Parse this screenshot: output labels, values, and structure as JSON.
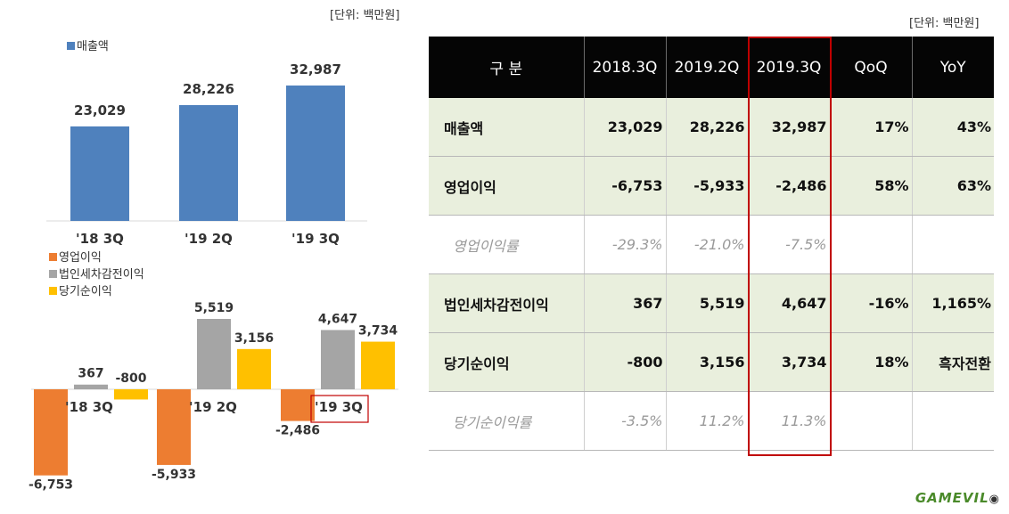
{
  "units": {
    "left": "[단위: 백만원]",
    "right": "[단위: 백만원]"
  },
  "colors": {
    "revenue": "#4f81bd",
    "operating": "#ed7d31",
    "pretax": "#a5a5a5",
    "net": "#ffc000",
    "highlight": "#c00000",
    "header_bg": "#050505",
    "row_shade": "#e9efdd"
  },
  "chart_data": [
    {
      "type": "bar",
      "legend": [
        "매출액"
      ],
      "categories": [
        "'18 3Q",
        "'19 2Q",
        "'19 3Q"
      ],
      "series": [
        {
          "name": "매출액",
          "values": [
            23029,
            28226,
            32987
          ],
          "labels": [
            "23,029",
            "28,226",
            "32,987"
          ]
        }
      ]
    },
    {
      "type": "bar",
      "legend": [
        "영업이익",
        "법인세차감전이익",
        "당기순이익"
      ],
      "categories": [
        "'18 3Q",
        "'19 2Q",
        "'19 3Q"
      ],
      "highlighted_category": "'19 3Q",
      "series": [
        {
          "name": "영업이익",
          "values": [
            -6753,
            -5933,
            -2486
          ],
          "labels": [
            "-6,753",
            "-5,933",
            "-2,486"
          ]
        },
        {
          "name": "법인세차감전이익",
          "values": [
            367,
            5519,
            4647
          ],
          "labels": [
            "367",
            "5,519",
            "4,647"
          ]
        },
        {
          "name": "당기순이익",
          "values": [
            -800,
            3156,
            3734
          ],
          "labels": [
            "-800",
            "3,156",
            "3,734"
          ]
        }
      ]
    }
  ],
  "table": {
    "headers": [
      "구 분",
      "2018.3Q",
      "2019.2Q",
      "2019.3Q",
      "QoQ",
      "YoY"
    ],
    "rows": [
      {
        "label": "매출액",
        "values": [
          "23,029",
          "28,226",
          "32,987",
          "17%",
          "43%"
        ]
      },
      {
        "label": "영업이익",
        "values": [
          "-6,753",
          "-5,933",
          "-2,486",
          "58%",
          "63%"
        ]
      },
      {
        "label": "영업이익률",
        "values": [
          "-29.3%",
          "-21.0%",
          "-7.5%",
          "",
          ""
        ]
      },
      {
        "label": "법인세차감전이익",
        "values": [
          "367",
          "5,519",
          "4,647",
          "-16%",
          "1,165%"
        ]
      },
      {
        "label": "당기순이익",
        "values": [
          "-800",
          "3,156",
          "3,734",
          "18%",
          "흑자전환"
        ]
      },
      {
        "label": "당기순이익률",
        "values": [
          "-3.5%",
          "11.2%",
          "11.3%",
          "",
          ""
        ]
      }
    ]
  },
  "logo_text": "GAMEVIL"
}
